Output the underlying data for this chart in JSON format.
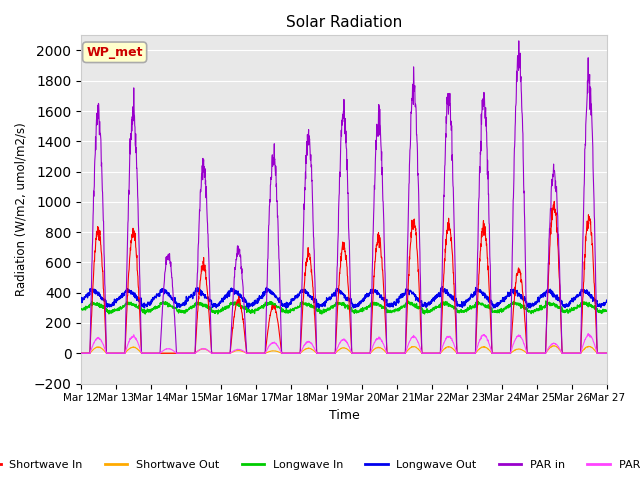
{
  "title": "Solar Radiation",
  "xlabel": "Time",
  "ylabel": "Radiation (W/m2, umol/m2/s)",
  "ylim": [
    -200,
    2100
  ],
  "yticks": [
    -200,
    0,
    200,
    400,
    600,
    800,
    1000,
    1200,
    1400,
    1600,
    1800,
    2000
  ],
  "figure_bg": "#ffffff",
  "plot_bg": "#e8e8e8",
  "grid_color": "#ffffff",
  "annotation_label": "WP_met",
  "annotation_bg": "#ffffcc",
  "annotation_border": "#aaaaaa",
  "annotation_text_color": "#cc0000",
  "n_days": 15,
  "start_day": 12,
  "colors": {
    "shortwave_in": "#ff0000",
    "shortwave_out": "#ffaa00",
    "longwave_in": "#00cc00",
    "longwave_out": "#0000ee",
    "par_in": "#9900cc",
    "par_out": "#ff44ff"
  },
  "legend_labels": [
    "Shortwave In",
    "Shortwave Out",
    "Longwave In",
    "Longwave Out",
    "PAR in",
    "PAR out"
  ],
  "xtick_labels": [
    "Mar 12",
    "Mar 13",
    "Mar 14",
    "Mar 15",
    "Mar 16",
    "Mar 17",
    "Mar 18",
    "Mar 19",
    "Mar 20",
    "Mar 21",
    "Mar 22",
    "Mar 23",
    "Mar 24",
    "Mar 25",
    "Mar 26",
    "Mar 27"
  ],
  "sw_peaks": [
    820,
    800,
    0,
    580,
    350,
    310,
    650,
    700,
    760,
    870,
    840,
    840,
    550,
    980,
    890,
    0
  ],
  "par_peaks": [
    1580,
    1580,
    650,
    1240,
    680,
    1300,
    1400,
    1580,
    1540,
    1760,
    1680,
    1680,
    1950,
    1200,
    1800,
    0
  ],
  "par_out_peaks": [
    100,
    110,
    30,
    30,
    25,
    70,
    75,
    90,
    100,
    110,
    110,
    120,
    115,
    65,
    120,
    0
  ],
  "lw_in_base": 310,
  "lw_out_base": 375,
  "lw_in_amp": 20,
  "lw_out_amp": 40,
  "figsize": [
    6.4,
    4.8
  ],
  "dpi": 100
}
